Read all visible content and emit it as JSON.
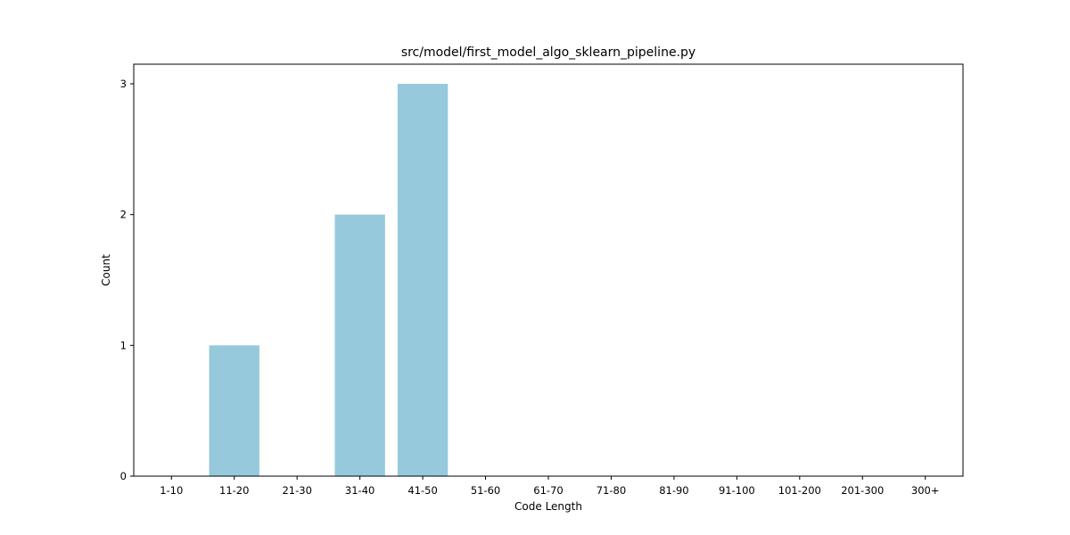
{
  "chart_data": {
    "type": "bar",
    "title": "src/model/first_model_algo_sklearn_pipeline.py",
    "xlabel": "Code Length",
    "ylabel": "Count",
    "categories": [
      "1-10",
      "11-20",
      "21-30",
      "31-40",
      "41-50",
      "51-60",
      "61-70",
      "71-80",
      "81-90",
      "91-100",
      "101-200",
      "201-300",
      "300+"
    ],
    "values": [
      0,
      1,
      0,
      2,
      3,
      0,
      0,
      0,
      0,
      0,
      0,
      0,
      0
    ],
    "ylim": [
      0,
      3.15
    ],
    "yticks": [
      0,
      1,
      2,
      3
    ],
    "bar_color": "#96c9dc",
    "grid": false,
    "legend": "none"
  }
}
